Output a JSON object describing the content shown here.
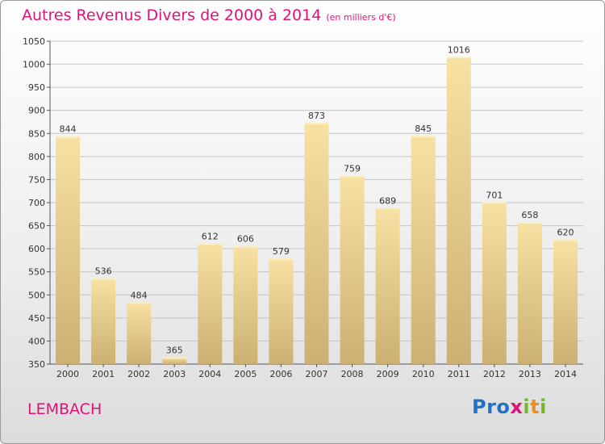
{
  "title": "Autres Revenus Divers de 2000 à 2014",
  "subtitle": "(en milliers d'€)",
  "commune": "LEMBACH",
  "logo": {
    "p": "Pro",
    "x": "x",
    "i": "i",
    "t": "t",
    "i2": "i"
  },
  "colors": {
    "title": "#e0127a",
    "bar_light": "#f7e1a3",
    "bar_dark": "#cbb073",
    "grid": "#bdbdbd"
  },
  "chart_data": {
    "type": "bar",
    "categories": [
      "2000",
      "2001",
      "2002",
      "2003",
      "2004",
      "2005",
      "2006",
      "2007",
      "2008",
      "2009",
      "2010",
      "2011",
      "2012",
      "2013",
      "2014"
    ],
    "values": [
      844,
      536,
      484,
      365,
      612,
      606,
      579,
      873,
      759,
      689,
      845,
      1016,
      701,
      658,
      620
    ],
    "ylim": [
      350,
      1050
    ],
    "yticks": [
      350,
      400,
      450,
      500,
      550,
      600,
      650,
      700,
      750,
      800,
      850,
      900,
      950,
      1000,
      1050
    ],
    "grid": true
  }
}
